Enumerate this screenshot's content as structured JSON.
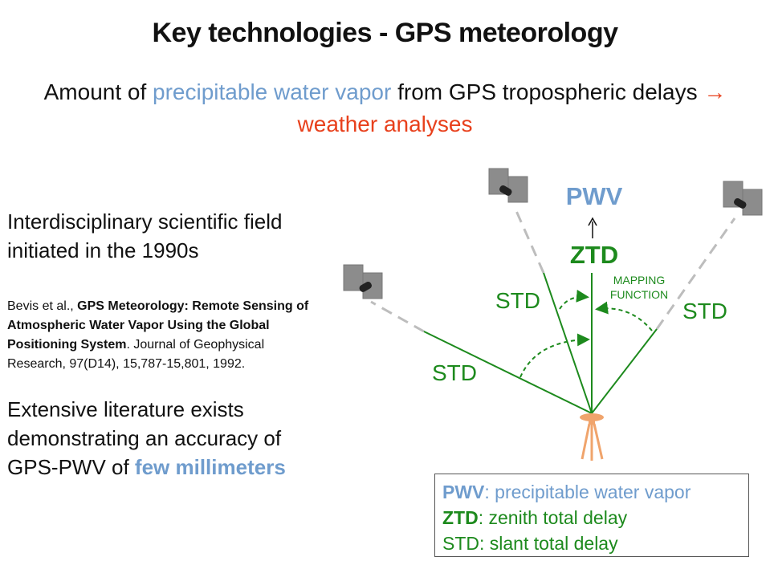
{
  "title": "Key technologies - GPS meteorology",
  "subtitle": {
    "part1": "Amount of ",
    "highlight": "precipitable water vapor",
    "part2": " from GPS tropospheric delays ",
    "arrow": "→",
    "conclusion": "weather analyses"
  },
  "left": {
    "field_text": "Interdisciplinary scientific field initiated in the 1990s",
    "citation": {
      "authors": "Bevis et al., ",
      "title": "GPS Meteorology: Remote Sensing of Atmospheric Water Vapor Using the Global Positioning System",
      "rest": ". Journal of Geophysical Research, 97(D14), 15,787-15,801, 1992."
    },
    "literature": {
      "text": "Extensive literature exists demonstrating an accuracy of GPS-PWV of ",
      "highlight": "few millimeters"
    }
  },
  "diagram": {
    "pwv_label": "PWV",
    "ztd_label": "ZTD",
    "std_left": "STD",
    "std_mid": "STD",
    "std_right": "STD",
    "mapping_line1": "MAPPING",
    "mapping_line2": "FUNCTION",
    "colors": {
      "green": "#1d8a1d",
      "blue": "#6f9ccd",
      "antenna": "#f0a46c",
      "satellite": "#8c8c8c"
    }
  },
  "legend": {
    "pwv_abbr": "PWV",
    "pwv_desc": ": precipitable water vapor",
    "ztd_abbr": "ZTD",
    "ztd_desc": ": zenith total delay",
    "std_line": "STD: slant total delay"
  }
}
